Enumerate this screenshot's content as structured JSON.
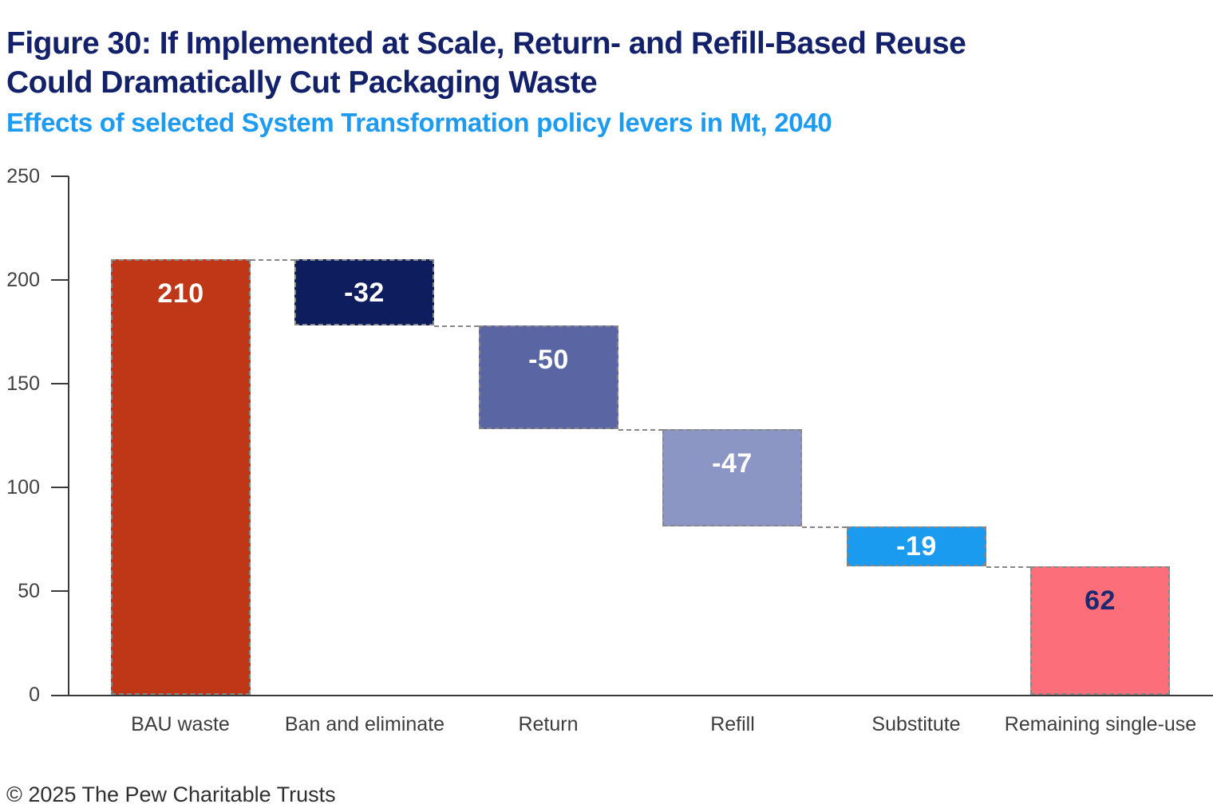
{
  "figure": {
    "title_lines": [
      "Figure 30: If Implemented at Scale, Return- and Refill-Based Reuse",
      "Could Dramatically Cut Packaging Waste"
    ],
    "subtitle": "Effects of selected System Transformation policy levers in Mt, 2040",
    "footer": "© 2025 The Pew Charitable Trusts"
  },
  "colors": {
    "title": "#13206a",
    "subtitle": "#1d9bf0",
    "axis": "#3a3a3a",
    "ticks": "#414141",
    "categories": "#3d3d3d",
    "connector": "#878787",
    "footer": "#2f2f2f"
  },
  "chart_data": {
    "type": "bar",
    "variant": "waterfall",
    "title": "Figure 30: If Implemented at Scale, Return- and Refill-Based Reuse Could Dramatically Cut Packaging Waste",
    "subtitle": "Effects of selected System Transformation policy levers in Mt, 2040",
    "unit": "Mt",
    "year": "2040",
    "ylim": [
      0,
      250
    ],
    "yticks": [
      0,
      50,
      100,
      150,
      200,
      250
    ],
    "grid": false,
    "legend": false,
    "categories": [
      "BAU waste",
      "Ban and eliminate",
      "Return",
      "Refill",
      "Substitute",
      "Remaining single-use"
    ],
    "steps": [
      {
        "category": "BAU waste",
        "value": 210,
        "display": "210",
        "from": 0,
        "to": 210,
        "bar_color": "#bf3717",
        "value_color": "#ffffff"
      },
      {
        "category": "Ban and eliminate",
        "value": -32,
        "display": "-32",
        "from": 178,
        "to": 210,
        "bar_color": "#0d1d5e",
        "value_color": "#ffffff"
      },
      {
        "category": "Return",
        "value": -50,
        "display": "-50",
        "from": 128,
        "to": 178,
        "bar_color": "#5a66a4",
        "value_color": "#ffffff"
      },
      {
        "category": "Refill",
        "value": -47,
        "display": "-47",
        "from": 81,
        "to": 128,
        "bar_color": "#8c96c4",
        "value_color": "#ffffff"
      },
      {
        "category": "Substitute",
        "value": -19,
        "display": "-19",
        "from": 62,
        "to": 81,
        "bar_color": "#1b9bef",
        "value_color": "#ffffff"
      },
      {
        "category": "Remaining single-use",
        "value": 62,
        "display": "62",
        "from": 0,
        "to": 62,
        "bar_color": "#fc6e79",
        "value_color": "#1b2a70"
      }
    ]
  }
}
